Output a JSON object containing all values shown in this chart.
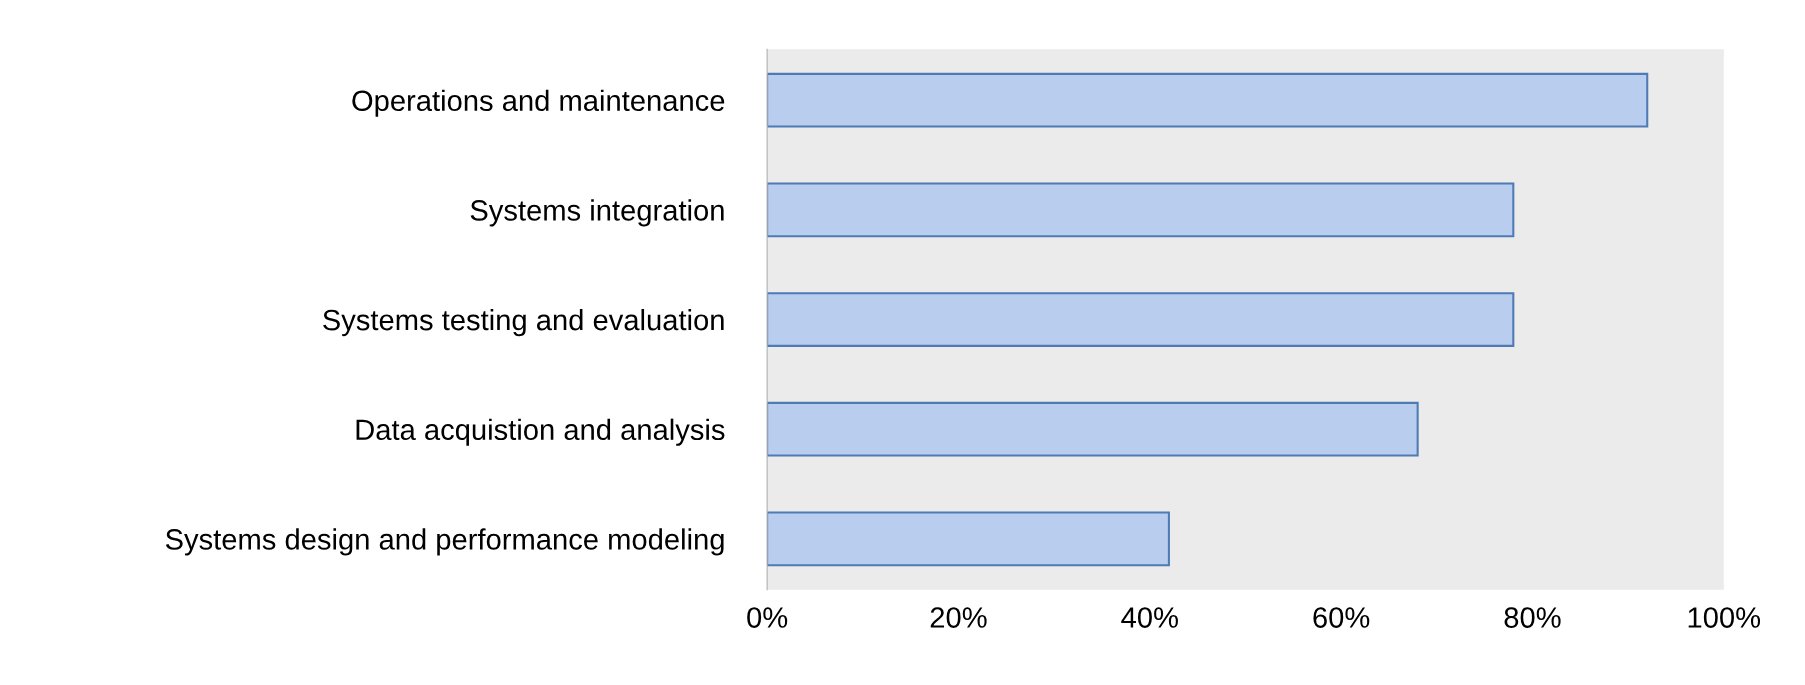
{
  "chart_data": {
    "type": "bar",
    "orientation": "horizontal",
    "categories": [
      "Operations and maintenance",
      "Systems integration",
      "Systems testing and evaluation",
      "Data acquistion and analysis",
      "Systems design and performance modeling"
    ],
    "values": [
      92,
      78,
      78,
      68,
      42
    ],
    "color": "#b9cdee",
    "xlim": [
      0,
      100
    ],
    "xticks": [
      {
        "value": 0,
        "label": "0%"
      },
      {
        "value": 20,
        "label": "20%"
      },
      {
        "value": 40,
        "label": "40%"
      },
      {
        "value": 60,
        "label": "60%"
      },
      {
        "value": 80,
        "label": "80%"
      },
      {
        "value": 100,
        "label": "100%"
      }
    ],
    "grid": false,
    "legend": false
  }
}
